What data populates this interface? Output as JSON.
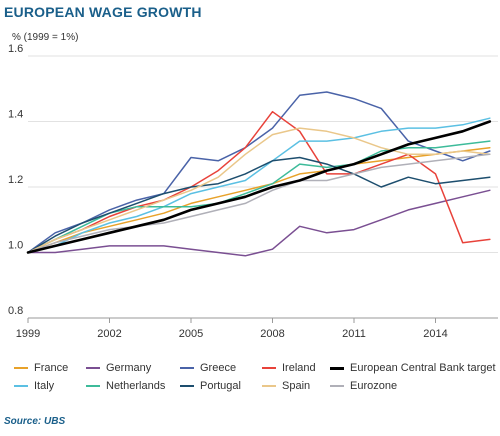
{
  "title": "EUROPEAN WAGE GROWTH",
  "unit_label": "% (1999 = 1%)",
  "source": "Source: UBS",
  "chart_data": {
    "type": "line",
    "x": [
      1999,
      2000,
      2001,
      2002,
      2003,
      2004,
      2005,
      2006,
      2007,
      2008,
      2009,
      2010,
      2011,
      2012,
      2013,
      2014,
      2015,
      2016
    ],
    "xlim": [
      1999,
      2016.3
    ],
    "ylim": [
      0.8,
      1.6
    ],
    "xticks": [
      "1999",
      "2002",
      "2005",
      "2008",
      "2011",
      "2014"
    ],
    "yticks": [
      "0.8",
      "1.0",
      "1.2",
      "1.4",
      "1.6"
    ],
    "grid": "horizontal",
    "legend_position": "bottom",
    "series": [
      {
        "name": "France",
        "color": "#e8a22a",
        "width": 1.5,
        "values": [
          1.0,
          1.03,
          1.06,
          1.08,
          1.1,
          1.12,
          1.15,
          1.17,
          1.19,
          1.21,
          1.24,
          1.25,
          1.27,
          1.28,
          1.29,
          1.3,
          1.31,
          1.32
        ]
      },
      {
        "name": "Germany",
        "color": "#7a4f92",
        "width": 1.5,
        "values": [
          1.0,
          1.0,
          1.01,
          1.02,
          1.02,
          1.02,
          1.01,
          1.0,
          0.99,
          1.01,
          1.08,
          1.06,
          1.07,
          1.1,
          1.13,
          1.15,
          1.17,
          1.19
        ]
      },
      {
        "name": "Greece",
        "color": "#4a63a8",
        "width": 1.5,
        "values": [
          1.0,
          1.06,
          1.09,
          1.13,
          1.16,
          1.18,
          1.29,
          1.28,
          1.32,
          1.38,
          1.48,
          1.49,
          1.47,
          1.44,
          1.34,
          1.31,
          1.28,
          1.31
        ]
      },
      {
        "name": "Ireland",
        "color": "#e8423a",
        "width": 1.5,
        "values": [
          1.0,
          1.04,
          1.07,
          1.11,
          1.14,
          1.16,
          1.2,
          1.25,
          1.32,
          1.43,
          1.37,
          1.24,
          1.24,
          1.27,
          1.3,
          1.24,
          1.03,
          1.04
        ]
      },
      {
        "name": "European Central Bank target",
        "color": "#000000",
        "width": 2.6,
        "values": [
          1.0,
          1.02,
          1.04,
          1.06,
          1.08,
          1.1,
          1.13,
          1.15,
          1.17,
          1.2,
          1.22,
          1.25,
          1.27,
          1.3,
          1.33,
          1.35,
          1.37,
          1.4
        ]
      },
      {
        "name": "Italy",
        "color": "#5bc0e3",
        "width": 1.5,
        "values": [
          1.0,
          1.02,
          1.06,
          1.09,
          1.11,
          1.14,
          1.18,
          1.2,
          1.22,
          1.28,
          1.34,
          1.34,
          1.35,
          1.37,
          1.38,
          1.38,
          1.39,
          1.41
        ]
      },
      {
        "name": "Netherlands",
        "color": "#3dbb9a",
        "width": 1.5,
        "values": [
          1.0,
          1.04,
          1.08,
          1.12,
          1.14,
          1.14,
          1.14,
          1.15,
          1.18,
          1.21,
          1.27,
          1.26,
          1.27,
          1.31,
          1.32,
          1.32,
          1.33,
          1.34
        ]
      },
      {
        "name": "Portugal",
        "color": "#1d4e6e",
        "width": 1.5,
        "values": [
          1.0,
          1.05,
          1.09,
          1.12,
          1.15,
          1.18,
          1.2,
          1.21,
          1.24,
          1.28,
          1.29,
          1.27,
          1.24,
          1.2,
          1.23,
          1.21,
          1.22,
          1.23
        ]
      },
      {
        "name": "Spain",
        "color": "#eac78a",
        "width": 1.5,
        "values": [
          1.0,
          1.04,
          1.07,
          1.1,
          1.13,
          1.16,
          1.19,
          1.23,
          1.3,
          1.36,
          1.38,
          1.37,
          1.35,
          1.32,
          1.3,
          1.3,
          1.31,
          1.3
        ]
      },
      {
        "name": "Eurozone",
        "color": "#b0b0b8",
        "width": 1.5,
        "values": [
          1.0,
          1.03,
          1.05,
          1.07,
          1.08,
          1.09,
          1.11,
          1.13,
          1.15,
          1.19,
          1.22,
          1.22,
          1.24,
          1.26,
          1.27,
          1.28,
          1.29,
          1.3
        ]
      }
    ],
    "legend_rows": [
      [
        "France",
        "Germany",
        "Greece",
        "Ireland",
        "European Central Bank target"
      ],
      [
        "Italy",
        "Netherlands",
        "Portugal",
        "Spain",
        "Eurozone"
      ]
    ]
  }
}
